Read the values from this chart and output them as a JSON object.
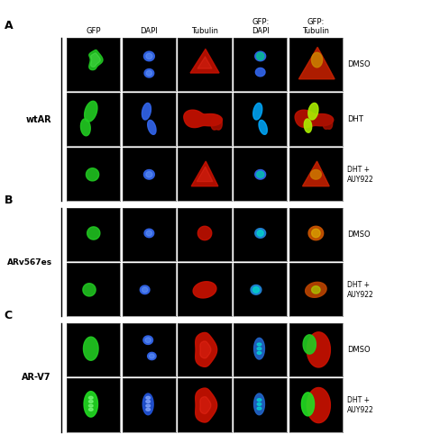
{
  "col_headers": [
    "GFP",
    "DAPI",
    "Tubulin",
    "GFP:\nDAPI",
    "GFP:\nTubulin"
  ],
  "panel_labels": [
    "A",
    "B",
    "C"
  ],
  "section_left_labels": [
    "wtAR",
    "ARv567es",
    "AR-V7"
  ],
  "row_right_labels_A": [
    "DMSO",
    "DHT",
    "DHT +\nAUY922"
  ],
  "row_right_labels_B": [
    "DMSO",
    "DHT +\nAUY922"
  ],
  "row_right_labels_C": [
    "DMSO",
    "DHT +\nAUY922"
  ],
  "nrows_A": 3,
  "nrows_B": 2,
  "nrows_C": 2,
  "ncols": 5
}
